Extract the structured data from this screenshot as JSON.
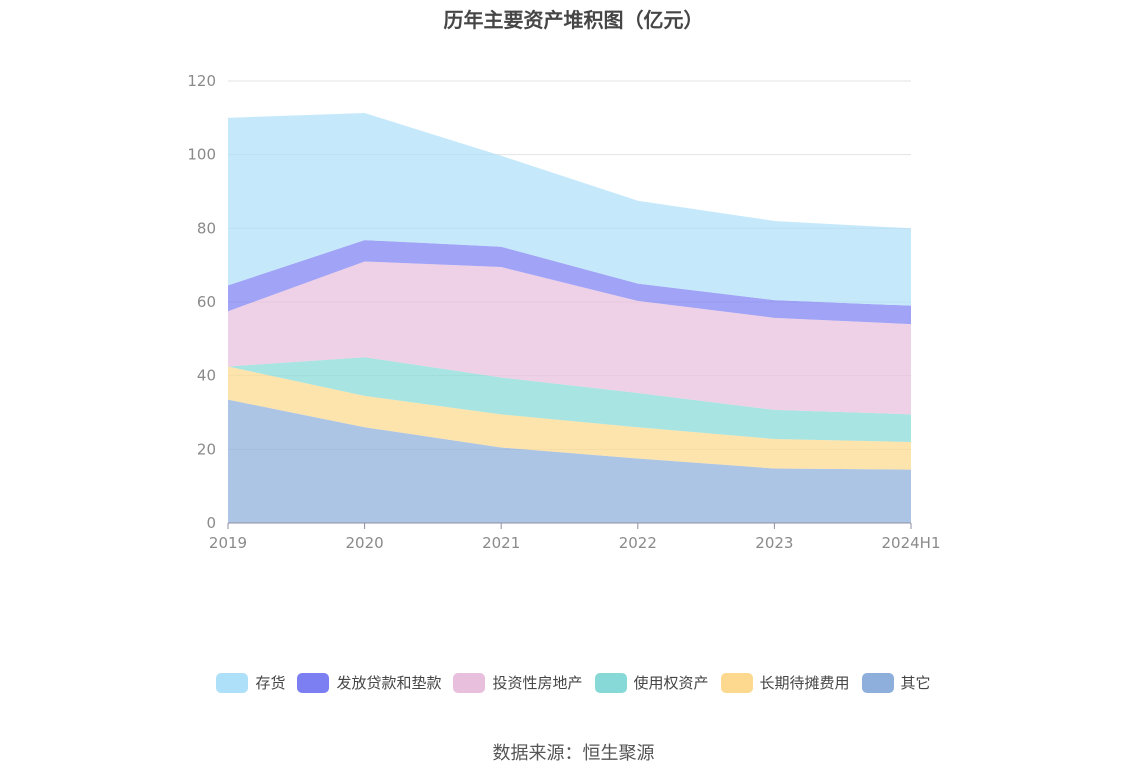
{
  "chart_data": {
    "type": "area",
    "stacked": true,
    "title": "历年主要资产堆积图（亿元）",
    "categories": [
      "2019",
      "2020",
      "2021",
      "2022",
      "2023",
      "2024H1"
    ],
    "ylim": [
      0,
      120
    ],
    "yticks": [
      0,
      20,
      40,
      60,
      80,
      100,
      120
    ],
    "grid": true,
    "legend_position": "bottom",
    "series": [
      {
        "name": "其它",
        "color": "#8eaedb",
        "values": [
          33.5,
          26.0,
          20.5,
          17.5,
          14.8,
          14.5
        ]
      },
      {
        "name": "长期待摊费用",
        "color": "#fcd98e",
        "values": [
          9.0,
          8.5,
          9.0,
          8.5,
          8.0,
          7.5
        ]
      },
      {
        "name": "使用权资产",
        "color": "#86d9d6",
        "values": [
          0.0,
          10.5,
          10.0,
          9.3,
          7.9,
          7.5
        ]
      },
      {
        "name": "投资性房地产",
        "color": "#e9bfde",
        "values": [
          15.0,
          26.0,
          30.0,
          25.0,
          25.0,
          24.5
        ]
      },
      {
        "name": "发放贷款和垫款",
        "color": "#7b7ff2",
        "values": [
          7.0,
          5.8,
          5.5,
          4.7,
          4.8,
          5.0
        ]
      },
      {
        "name": "存货",
        "color": "#aee1f9",
        "values": [
          45.5,
          34.5,
          24.7,
          22.5,
          21.5,
          21.0
        ]
      }
    ]
  },
  "legend_order": [
    {
      "name": "存货",
      "color": "#aee1f9"
    },
    {
      "name": "发放贷款和垫款",
      "color": "#7b7ff2"
    },
    {
      "name": "投资性房地产",
      "color": "#e9bfde"
    },
    {
      "name": "使用权资产",
      "color": "#86d9d6"
    },
    {
      "name": "长期待摊费用",
      "color": "#fcd98e"
    },
    {
      "name": "其它",
      "color": "#8eaedb"
    }
  ],
  "source": "数据来源：恒生聚源"
}
